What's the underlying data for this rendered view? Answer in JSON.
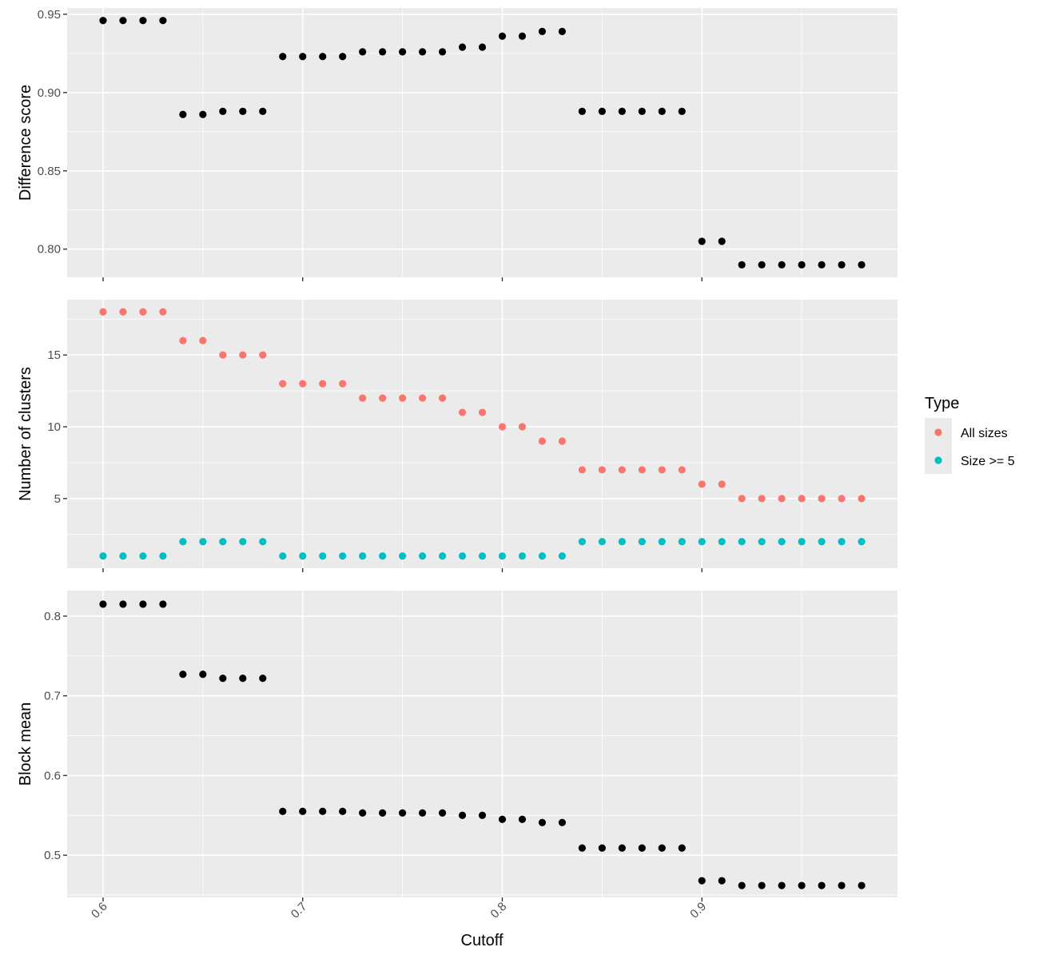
{
  "chart_data": [
    {
      "type": "scatter",
      "panel": "top",
      "ylabel": "Difference score",
      "xlabel": "",
      "xlim": [
        0.582,
        0.998
      ],
      "ylim": [
        0.782,
        0.954
      ],
      "yticks": [
        0.8,
        0.85,
        0.9,
        0.95
      ],
      "ytick_labels": [
        "0.80",
        "0.85",
        "0.90",
        "0.95"
      ],
      "grid": true,
      "series": [
        {
          "color": "#000000",
          "points": [
            [
              0.6,
              0.946
            ],
            [
              0.61,
              0.946
            ],
            [
              0.62,
              0.946
            ],
            [
              0.63,
              0.946
            ],
            [
              0.64,
              0.886
            ],
            [
              0.65,
              0.886
            ],
            [
              0.66,
              0.888
            ],
            [
              0.67,
              0.888
            ],
            [
              0.68,
              0.888
            ],
            [
              0.69,
              0.923
            ],
            [
              0.7,
              0.923
            ],
            [
              0.71,
              0.923
            ],
            [
              0.72,
              0.923
            ],
            [
              0.73,
              0.926
            ],
            [
              0.74,
              0.926
            ],
            [
              0.75,
              0.926
            ],
            [
              0.76,
              0.926
            ],
            [
              0.77,
              0.926
            ],
            [
              0.78,
              0.929
            ],
            [
              0.79,
              0.929
            ],
            [
              0.8,
              0.936
            ],
            [
              0.81,
              0.936
            ],
            [
              0.82,
              0.939
            ],
            [
              0.83,
              0.939
            ],
            [
              0.84,
              0.888
            ],
            [
              0.85,
              0.888
            ],
            [
              0.86,
              0.888
            ],
            [
              0.87,
              0.888
            ],
            [
              0.88,
              0.888
            ],
            [
              0.89,
              0.888
            ],
            [
              0.9,
              0.805
            ],
            [
              0.91,
              0.805
            ],
            [
              0.92,
              0.79
            ],
            [
              0.93,
              0.79
            ],
            [
              0.94,
              0.79
            ],
            [
              0.95,
              0.79
            ],
            [
              0.96,
              0.79
            ],
            [
              0.97,
              0.79
            ],
            [
              0.98,
              0.79
            ]
          ]
        }
      ]
    },
    {
      "type": "scatter",
      "panel": "middle",
      "ylabel": "Number of clusters",
      "xlabel": "",
      "xlim": [
        0.582,
        0.998
      ],
      "ylim": [
        0.15,
        18.85
      ],
      "yticks": [
        5,
        10,
        15
      ],
      "ytick_labels": [
        "5",
        "10",
        "15"
      ],
      "grid": true,
      "legend": {
        "title": "Type",
        "placement": "right"
      },
      "series": [
        {
          "name": "All sizes",
          "color": "#F8766D",
          "points": [
            [
              0.6,
              18
            ],
            [
              0.61,
              18
            ],
            [
              0.62,
              18
            ],
            [
              0.63,
              18
            ],
            [
              0.64,
              16
            ],
            [
              0.65,
              16
            ],
            [
              0.66,
              15
            ],
            [
              0.67,
              15
            ],
            [
              0.68,
              15
            ],
            [
              0.69,
              13
            ],
            [
              0.7,
              13
            ],
            [
              0.71,
              13
            ],
            [
              0.72,
              13
            ],
            [
              0.73,
              12
            ],
            [
              0.74,
              12
            ],
            [
              0.75,
              12
            ],
            [
              0.76,
              12
            ],
            [
              0.77,
              12
            ],
            [
              0.78,
              11
            ],
            [
              0.79,
              11
            ],
            [
              0.8,
              10
            ],
            [
              0.81,
              10
            ],
            [
              0.82,
              9
            ],
            [
              0.83,
              9
            ],
            [
              0.84,
              7
            ],
            [
              0.85,
              7
            ],
            [
              0.86,
              7
            ],
            [
              0.87,
              7
            ],
            [
              0.88,
              7
            ],
            [
              0.89,
              7
            ],
            [
              0.9,
              6
            ],
            [
              0.91,
              6
            ],
            [
              0.92,
              5
            ],
            [
              0.93,
              5
            ],
            [
              0.94,
              5
            ],
            [
              0.95,
              5
            ],
            [
              0.96,
              5
            ],
            [
              0.97,
              5
            ],
            [
              0.98,
              5
            ]
          ]
        },
        {
          "name": "Size >= 5",
          "color": "#00BFC4",
          "points": [
            [
              0.6,
              1
            ],
            [
              0.61,
              1
            ],
            [
              0.62,
              1
            ],
            [
              0.63,
              1
            ],
            [
              0.64,
              2
            ],
            [
              0.65,
              2
            ],
            [
              0.66,
              2
            ],
            [
              0.67,
              2
            ],
            [
              0.68,
              2
            ],
            [
              0.69,
              1
            ],
            [
              0.7,
              1
            ],
            [
              0.71,
              1
            ],
            [
              0.72,
              1
            ],
            [
              0.73,
              1
            ],
            [
              0.74,
              1
            ],
            [
              0.75,
              1
            ],
            [
              0.76,
              1
            ],
            [
              0.77,
              1
            ],
            [
              0.78,
              1
            ],
            [
              0.79,
              1
            ],
            [
              0.8,
              1
            ],
            [
              0.81,
              1
            ],
            [
              0.82,
              1
            ],
            [
              0.83,
              1
            ],
            [
              0.84,
              2
            ],
            [
              0.85,
              2
            ],
            [
              0.86,
              2
            ],
            [
              0.87,
              2
            ],
            [
              0.88,
              2
            ],
            [
              0.89,
              2
            ],
            [
              0.9,
              2
            ],
            [
              0.91,
              2
            ],
            [
              0.92,
              2
            ],
            [
              0.93,
              2
            ],
            [
              0.94,
              2
            ],
            [
              0.95,
              2
            ],
            [
              0.96,
              2
            ],
            [
              0.97,
              2
            ],
            [
              0.98,
              2
            ]
          ]
        }
      ]
    },
    {
      "type": "scatter",
      "panel": "bottom",
      "ylabel": "Block mean",
      "xlabel": "Cutoff",
      "xlim": [
        0.582,
        0.998
      ],
      "ylim": [
        0.447,
        0.832
      ],
      "yticks": [
        0.5,
        0.6,
        0.7,
        0.8
      ],
      "ytick_labels": [
        "0.5",
        "0.6",
        "0.7",
        "0.8"
      ],
      "xticks": [
        0.6,
        0.7,
        0.8,
        0.9
      ],
      "xtick_labels": [
        "0.6",
        "0.7",
        "0.8",
        "0.9"
      ],
      "grid": true,
      "series": [
        {
          "color": "#000000",
          "points": [
            [
              0.6,
              0.815
            ],
            [
              0.61,
              0.815
            ],
            [
              0.62,
              0.815
            ],
            [
              0.63,
              0.815
            ],
            [
              0.64,
              0.727
            ],
            [
              0.65,
              0.727
            ],
            [
              0.66,
              0.722
            ],
            [
              0.67,
              0.722
            ],
            [
              0.68,
              0.722
            ],
            [
              0.69,
              0.555
            ],
            [
              0.7,
              0.555
            ],
            [
              0.71,
              0.555
            ],
            [
              0.72,
              0.555
            ],
            [
              0.73,
              0.553
            ],
            [
              0.74,
              0.553
            ],
            [
              0.75,
              0.553
            ],
            [
              0.76,
              0.553
            ],
            [
              0.77,
              0.553
            ],
            [
              0.78,
              0.55
            ],
            [
              0.79,
              0.55
            ],
            [
              0.8,
              0.545
            ],
            [
              0.81,
              0.545
            ],
            [
              0.82,
              0.541
            ],
            [
              0.83,
              0.541
            ],
            [
              0.84,
              0.509
            ],
            [
              0.85,
              0.509
            ],
            [
              0.86,
              0.509
            ],
            [
              0.87,
              0.509
            ],
            [
              0.88,
              0.509
            ],
            [
              0.89,
              0.509
            ],
            [
              0.9,
              0.468
            ],
            [
              0.91,
              0.468
            ],
            [
              0.92,
              0.462
            ],
            [
              0.93,
              0.462
            ],
            [
              0.94,
              0.462
            ],
            [
              0.95,
              0.462
            ],
            [
              0.96,
              0.462
            ],
            [
              0.97,
              0.462
            ],
            [
              0.98,
              0.462
            ]
          ]
        }
      ]
    }
  ],
  "legend": {
    "title": "Type",
    "items": [
      {
        "label": "All sizes",
        "color": "#F8766D"
      },
      {
        "label": "Size >= 5",
        "color": "#00BFC4"
      }
    ]
  }
}
